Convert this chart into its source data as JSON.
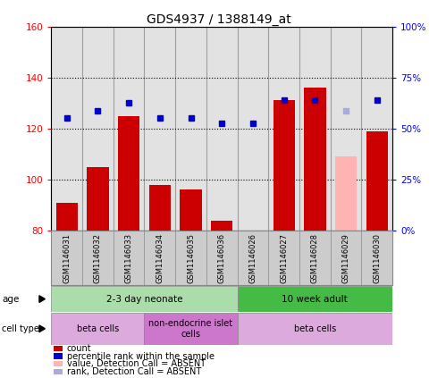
{
  "title": "GDS4937 / 1388149_at",
  "samples": [
    "GSM1146031",
    "GSM1146032",
    "GSM1146033",
    "GSM1146034",
    "GSM1146035",
    "GSM1146036",
    "GSM1146026",
    "GSM1146027",
    "GSM1146028",
    "GSM1146029",
    "GSM1146030"
  ],
  "count_values": [
    91,
    105,
    125,
    98,
    96,
    84,
    80,
    131,
    136,
    null,
    119
  ],
  "count_absent": [
    null,
    null,
    null,
    null,
    null,
    null,
    null,
    null,
    null,
    109,
    null
  ],
  "rank_values": [
    124,
    127,
    130,
    124,
    124,
    122,
    122,
    131,
    131,
    null,
    131
  ],
  "rank_absent": [
    null,
    null,
    null,
    null,
    null,
    null,
    null,
    null,
    null,
    127,
    null
  ],
  "ylim_left": [
    80,
    160
  ],
  "ylim_right": [
    0,
    100
  ],
  "yticks_left": [
    80,
    100,
    120,
    140,
    160
  ],
  "yticks_right": [
    0,
    25,
    50,
    75,
    100
  ],
  "yticklabels_right": [
    "0%",
    "25%",
    "50%",
    "75%",
    "100%"
  ],
  "bar_color": "#cc0000",
  "bar_absent_color": "#ffb3b3",
  "rank_color": "#0000cc",
  "rank_absent_color": "#aaaadd",
  "age_groups": [
    {
      "label": "2-3 day neonate",
      "start": 0,
      "end": 6,
      "color": "#aaddaa"
    },
    {
      "label": "10 week adult",
      "start": 6,
      "end": 11,
      "color": "#44bb44"
    }
  ],
  "cell_groups": [
    {
      "label": "beta cells",
      "start": 0,
      "end": 3,
      "color": "#ddaadd"
    },
    {
      "label": "non-endocrine islet\ncells",
      "start": 3,
      "end": 6,
      "color": "#cc77cc"
    },
    {
      "label": "beta cells",
      "start": 6,
      "end": 11,
      "color": "#ddaadd"
    }
  ],
  "legend_items": [
    {
      "label": "count",
      "color": "#cc0000"
    },
    {
      "label": "percentile rank within the sample",
      "color": "#0000cc"
    },
    {
      "label": "value, Detection Call = ABSENT",
      "color": "#ffb3b3"
    },
    {
      "label": "rank, Detection Call = ABSENT",
      "color": "#aaaadd"
    }
  ],
  "marker_size": 5
}
